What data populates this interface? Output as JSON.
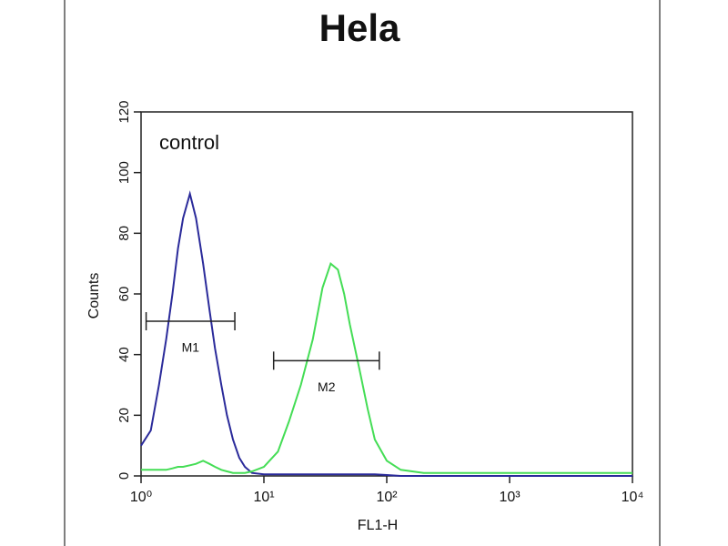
{
  "chart_data": {
    "type": "histogram-overlay",
    "title": "Hela",
    "xlabel": "FL1-H",
    "ylabel": "Counts",
    "annotation": "control",
    "xscale": "log",
    "xlim": [
      1,
      10000
    ],
    "xticks": [
      {
        "value": 1,
        "label": "10⁰"
      },
      {
        "value": 10,
        "label": "10¹"
      },
      {
        "value": 100,
        "label": "10²"
      },
      {
        "value": 1000,
        "label": "10³"
      },
      {
        "value": 10000,
        "label": "10⁴"
      }
    ],
    "ylim": [
      0,
      120
    ],
    "yticks": [
      0,
      20,
      40,
      60,
      80,
      100,
      120
    ],
    "x": [
      1,
      1.2,
      1.4,
      1.6,
      1.8,
      2,
      2.2,
      2.5,
      2.8,
      3.2,
      3.6,
      4,
      4.5,
      5,
      5.6,
      6.3,
      7,
      8,
      10,
      13,
      16,
      20,
      25,
      30,
      35,
      40,
      45,
      50,
      60,
      70,
      80,
      100,
      130,
      200,
      500,
      1000,
      2000,
      5000,
      10000
    ],
    "series": [
      {
        "color": "#2a2a9a",
        "values": [
          10,
          15,
          30,
          45,
          60,
          75,
          85,
          93,
          85,
          70,
          55,
          42,
          30,
          20,
          12,
          6,
          3,
          1,
          0.5,
          0.5,
          0.5,
          0.5,
          0.5,
          0.5,
          0.5,
          0.5,
          0.5,
          0.5,
          0.5,
          0.5,
          0.5,
          0.3,
          0,
          0,
          0,
          0,
          0,
          0,
          0
        ]
      },
      {
        "color": "#44dd55",
        "values": [
          2,
          2,
          2,
          2,
          2.5,
          3,
          3,
          3.5,
          4,
          5,
          4,
          3,
          2,
          1.5,
          1,
          1,
          1,
          1.5,
          3,
          8,
          18,
          30,
          45,
          62,
          70,
          68,
          60,
          50,
          35,
          22,
          12,
          5,
          2,
          1,
          1,
          1,
          1,
          1,
          1
        ]
      }
    ],
    "markers": [
      {
        "label": "M1",
        "range": [
          1.1,
          5.8
        ],
        "y": 51
      },
      {
        "label": "M2",
        "range": [
          12,
          87
        ],
        "y": 38
      }
    ]
  }
}
